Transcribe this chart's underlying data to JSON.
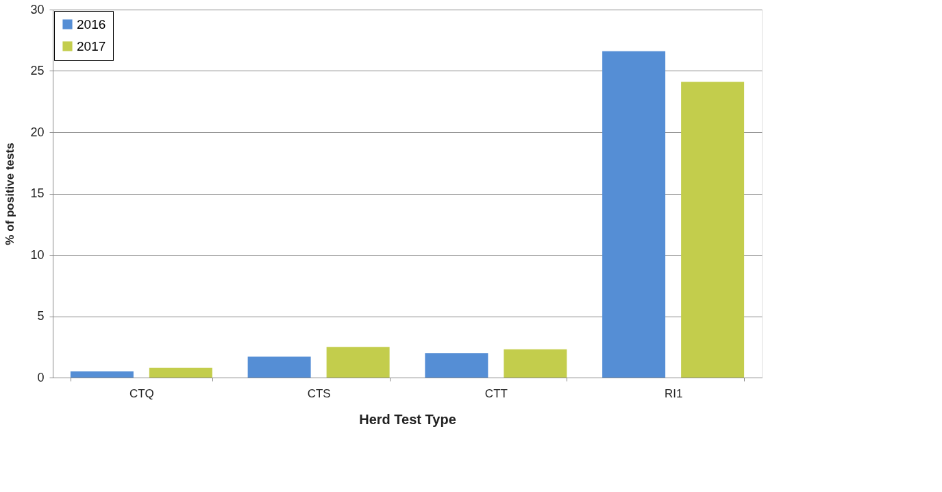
{
  "chart_data": {
    "type": "bar",
    "xlabel": "Herd Test Type",
    "ylabel": "% of positive  tests",
    "categories": [
      "CTQ",
      "CTS",
      "CTT",
      "RI1"
    ],
    "series": [
      {
        "name": "2016",
        "color": "#558ed5",
        "values": [
          0.5,
          1.7,
          2.0,
          26.6
        ]
      },
      {
        "name": "2017",
        "color": "#c3cd4c",
        "values": [
          0.8,
          2.5,
          2.3,
          24.1
        ]
      }
    ],
    "ylim": [
      0,
      30
    ],
    "yticks": [
      0,
      5,
      10,
      15,
      20,
      25,
      30
    ],
    "grid": "y",
    "legend": "top left"
  }
}
